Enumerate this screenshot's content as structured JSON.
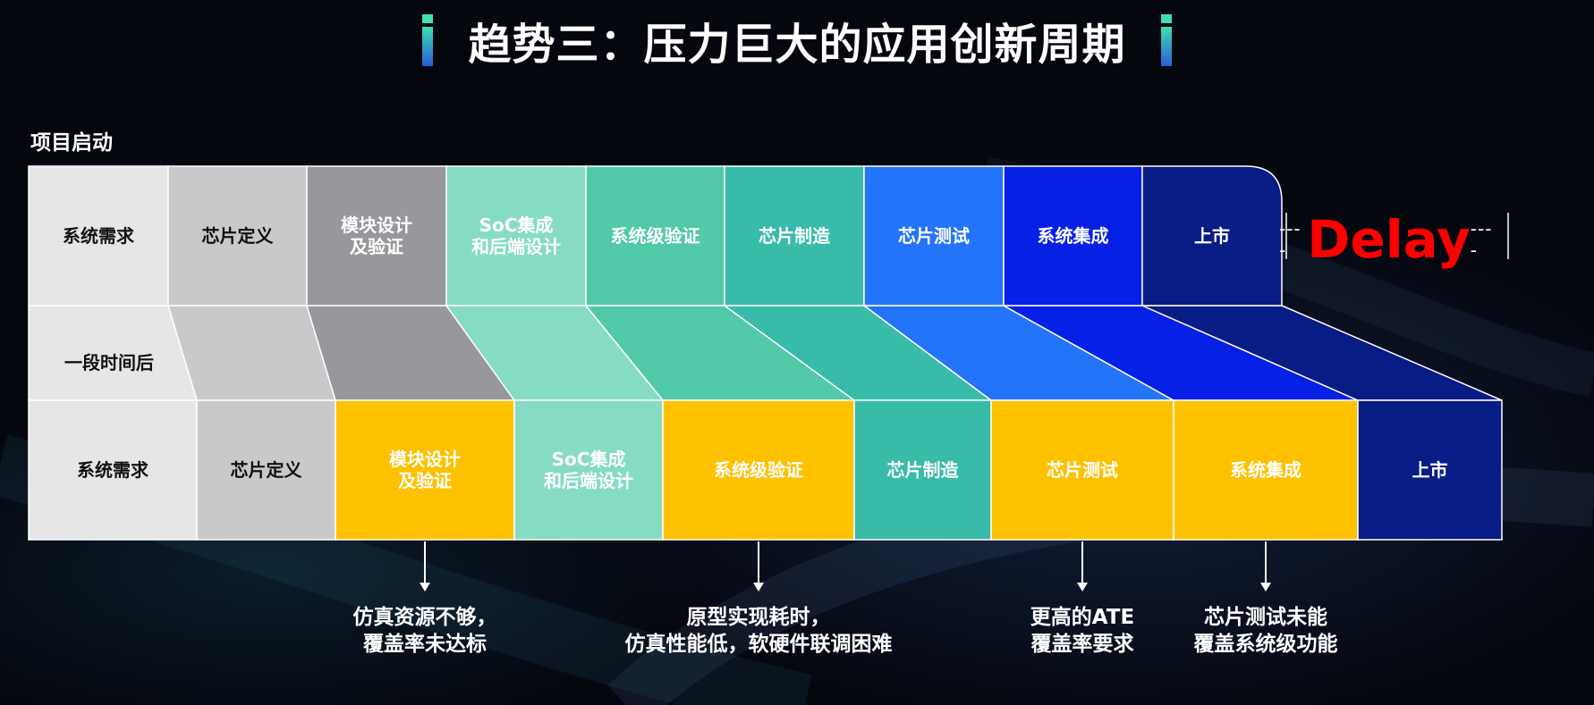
{
  "title": "趋势三：压力巨大的应用创新周期",
  "project_start": "项目启动",
  "after_period": "一段时间后",
  "delay_label": "Delay",
  "delay_dash": "----",
  "top_row": [
    {
      "label": "系统需求",
      "color": "#e6e6e6",
      "text_color": "#111111"
    },
    {
      "label": "芯片定义",
      "color": "#c9c9cb",
      "text_color": "#111111"
    },
    {
      "label": "模块设计\n及验证",
      "color": "#98989c",
      "text_color": "#ffffff"
    },
    {
      "label": "SoC集成\n和后端设计",
      "color": "#86dcc3",
      "text_color": "#ffffff"
    },
    {
      "label": "系统级验证",
      "color": "#52c9a8",
      "text_color": "#ffffff"
    },
    {
      "label": "芯片制造",
      "color": "#38bba9",
      "text_color": "#ffffff"
    },
    {
      "label": "芯片测试",
      "color": "#2474fa",
      "text_color": "#ffffff"
    },
    {
      "label": "系统集成",
      "color": "#0720e6",
      "text_color": "#ffffff"
    },
    {
      "label": "上市",
      "color": "#081c85",
      "text_color": "#ffffff"
    }
  ],
  "bottom_row": [
    {
      "label": "系统需求",
      "color": "#e6e6e6",
      "text_color": "#111111"
    },
    {
      "label": "芯片定义",
      "color": "#c9c9cb",
      "text_color": "#111111"
    },
    {
      "label": "模块设计\n及验证",
      "color": "#fec100",
      "text_color": "#ffffff"
    },
    {
      "label": "SoC集成\n和后端设计",
      "color": "#86dcc3",
      "text_color": "#ffffff"
    },
    {
      "label": "系统级验证",
      "color": "#fec100",
      "text_color": "#ffffff"
    },
    {
      "label": "芯片制造",
      "color": "#38bba9",
      "text_color": "#ffffff"
    },
    {
      "label": "芯片测试",
      "color": "#fec100",
      "text_color": "#ffffff"
    },
    {
      "label": "系统集成",
      "color": "#fec100",
      "text_color": "#ffffff"
    },
    {
      "label": "上市",
      "color": "#081c85",
      "text_color": "#ffffff"
    }
  ],
  "notes": [
    {
      "text": "仿真资源不够，\n覆盖率未达标",
      "stage_index": 2
    },
    {
      "text": "原型实现耗时，\n仿真性能低，软硬件联调困难",
      "stage_index": 4
    },
    {
      "text": "更高的ATE\n覆盖率要求",
      "stage_index": 6
    },
    {
      "text": "芯片测试未能\n覆盖系统级功能",
      "stage_index": 7
    }
  ],
  "accent_colors": {
    "title_bar_top": "#3ee0b0",
    "title_bar_bottom": "#2a5bd8",
    "delay": "#ff0000"
  }
}
